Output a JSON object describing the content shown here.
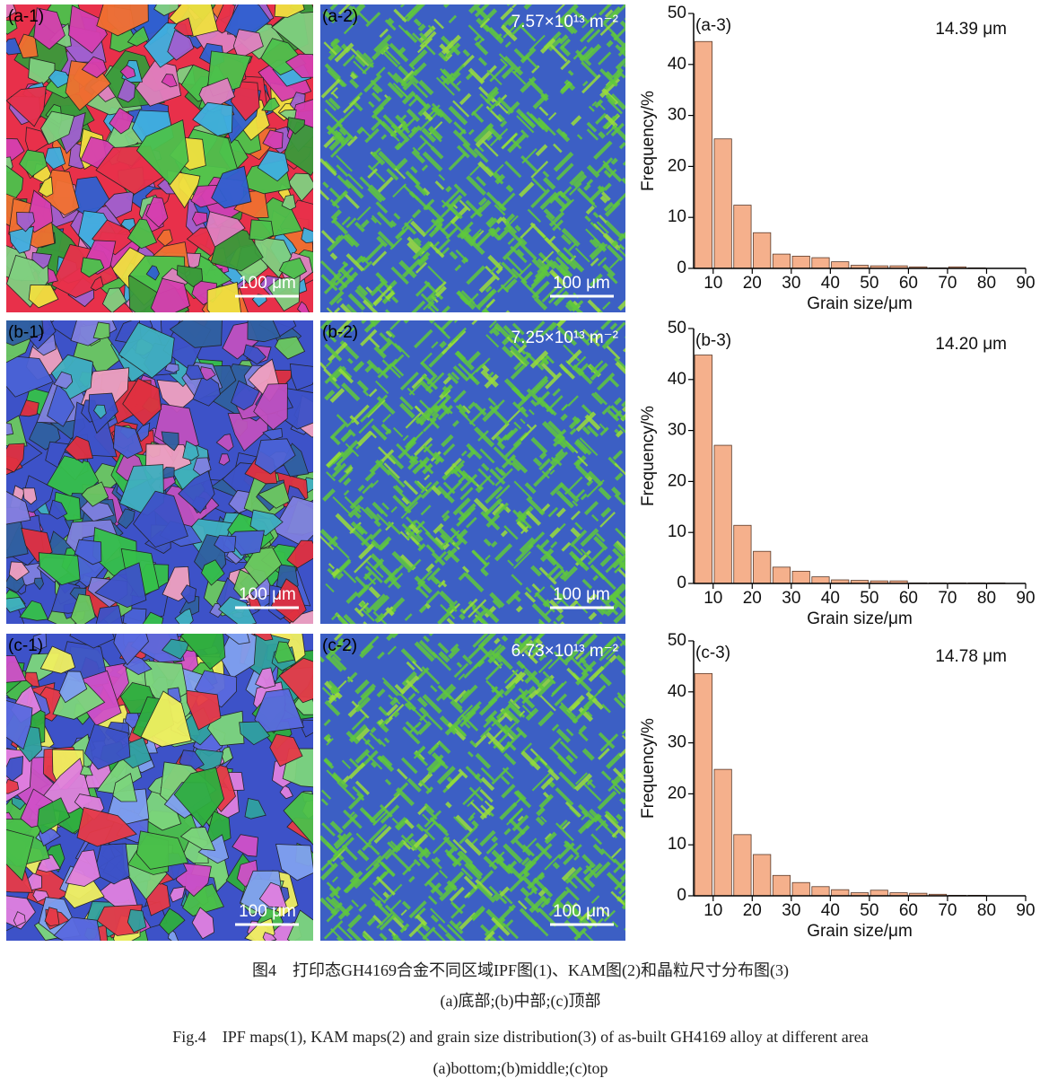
{
  "panels": [
    {
      "ipf_label": "(a-1)",
      "kam_label": "(a-2)",
      "kam_density": "7.57×10¹³ m⁻²",
      "ipf_scale_bar": "100 μm",
      "kam_scale_bar": "100 μm"
    },
    {
      "ipf_label": "(b-1)",
      "kam_label": "(b-2)",
      "kam_density": "7.25×10¹³ m⁻²",
      "ipf_scale_bar": "100 μm",
      "kam_scale_bar": "100 μm"
    },
    {
      "ipf_label": "(c-1)",
      "kam_label": "(c-2)",
      "kam_density": "6.73×10¹³ m⁻²",
      "ipf_scale_bar": "100 μm",
      "kam_scale_bar": "100 μm"
    }
  ],
  "chart_data": [
    {
      "type": "histogram",
      "panel_label": "(a-3)",
      "annotation": "14.39 μm",
      "xlabel": "Grain size/μm",
      "ylabel": "Frequency/%",
      "color": "#f5b08c",
      "bins": [
        5,
        10,
        15,
        20,
        25,
        30,
        35,
        40,
        45,
        50,
        55,
        60,
        65,
        70,
        75,
        80,
        85
      ],
      "values": [
        44.5,
        25.4,
        12.4,
        7.0,
        2.8,
        2.4,
        2.1,
        1.3,
        0.6,
        0.5,
        0.5,
        0.3,
        0.1,
        0.3,
        0.1,
        0.0
      ],
      "xlim": [
        5,
        90
      ],
      "xticks": [
        10,
        20,
        30,
        40,
        50,
        60,
        70,
        80,
        90
      ],
      "ylim": [
        0,
        50
      ],
      "yticks": [
        0,
        10,
        20,
        30,
        40,
        50
      ]
    },
    {
      "type": "histogram",
      "panel_label": "(b-3)",
      "annotation": "14.20 μm",
      "xlabel": "Grain size/μm",
      "ylabel": "Frequency/%",
      "color": "#f5b08c",
      "bins": [
        5,
        10,
        15,
        20,
        25,
        30,
        35,
        40,
        45,
        50,
        55,
        60,
        65,
        70,
        75,
        80,
        85
      ],
      "values": [
        44.8,
        27.1,
        11.4,
        6.3,
        3.2,
        2.4,
        1.3,
        0.7,
        0.6,
        0.5,
        0.5,
        0.1,
        0.1,
        0.1,
        0.1,
        0.1
      ],
      "xlim": [
        5,
        90
      ],
      "xticks": [
        10,
        20,
        30,
        40,
        50,
        60,
        70,
        80,
        90
      ],
      "ylim": [
        0,
        50
      ],
      "yticks": [
        0,
        10,
        20,
        30,
        40,
        50
      ]
    },
    {
      "type": "histogram",
      "panel_label": "(c-3)",
      "annotation": "14.78 μm",
      "xlabel": "Grain size/μm",
      "ylabel": "Frequency/%",
      "color": "#f5b08c",
      "bins": [
        5,
        10,
        15,
        20,
        25,
        30,
        35,
        40,
        45,
        50,
        55,
        60,
        65,
        70,
        75,
        80,
        85
      ],
      "values": [
        43.6,
        24.8,
        12.0,
        8.1,
        4.0,
        2.6,
        1.8,
        1.2,
        0.6,
        1.1,
        0.6,
        0.5,
        0.3,
        0.1,
        0.1,
        0.0
      ],
      "xlim": [
        5,
        90
      ],
      "xticks": [
        10,
        20,
        30,
        40,
        50,
        60,
        70,
        80,
        90
      ],
      "ylim": [
        0,
        50
      ],
      "yticks": [
        0,
        10,
        20,
        30,
        40,
        50
      ]
    }
  ],
  "caption": {
    "zh_title": "图4　打印态GH4169合金不同区域IPF图(1)、KAM图(2)和晶粒尺寸分布图(3)",
    "zh_sub": "(a)底部;(b)中部;(c)顶部",
    "en_title": "Fig.4　IPF maps(1), KAM maps(2) and grain size distribution(3) of as-built GH4169 alloy at different area",
    "en_sub": "(a)bottom;(b)middle;(c)top"
  }
}
